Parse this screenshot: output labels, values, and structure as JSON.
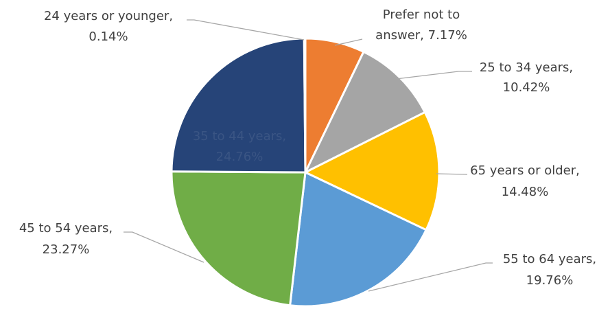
{
  "chart_data": {
    "type": "pie",
    "title": "",
    "slices": [
      {
        "label": "Prefer not to answer",
        "value": 7.17,
        "display": "7.17%",
        "color": "#ED7D31"
      },
      {
        "label": "25 to 34 years",
        "value": 10.42,
        "display": "10.42%",
        "color": "#A5A5A5"
      },
      {
        "label": "65 years or older",
        "value": 14.48,
        "display": "14.48%",
        "color": "#FFC000"
      },
      {
        "label": "55 to 64 years",
        "value": 19.76,
        "display": "19.76%",
        "color": "#5B9BD5"
      },
      {
        "label": "45 to 54 years",
        "value": 23.27,
        "display": "23.27%",
        "color": "#70AD47"
      },
      {
        "label": "35 to 44 years",
        "value": 24.76,
        "display": "24.76%",
        "color": "#264478"
      },
      {
        "label": "24 years or younger",
        "value": 0.14,
        "display": "0.14%",
        "color": "#4472C4"
      }
    ],
    "data_labels": [
      {
        "lines": [
          "Prefer not to",
          "answer, 7.17%"
        ]
      },
      {
        "lines": [
          "25 to 34 years,",
          "10.42%"
        ]
      },
      {
        "lines": [
          "65 years or older,",
          "14.48%"
        ]
      },
      {
        "lines": [
          "55 to 64 years,",
          "19.76%"
        ]
      },
      {
        "lines": [
          "45 to 54 years,",
          "23.27%"
        ]
      },
      {
        "lines": [
          "35 to 44 years,",
          "24.76%"
        ]
      },
      {
        "lines": [
          "24 years or younger,",
          "0.14%"
        ]
      }
    ],
    "legend": "none"
  }
}
